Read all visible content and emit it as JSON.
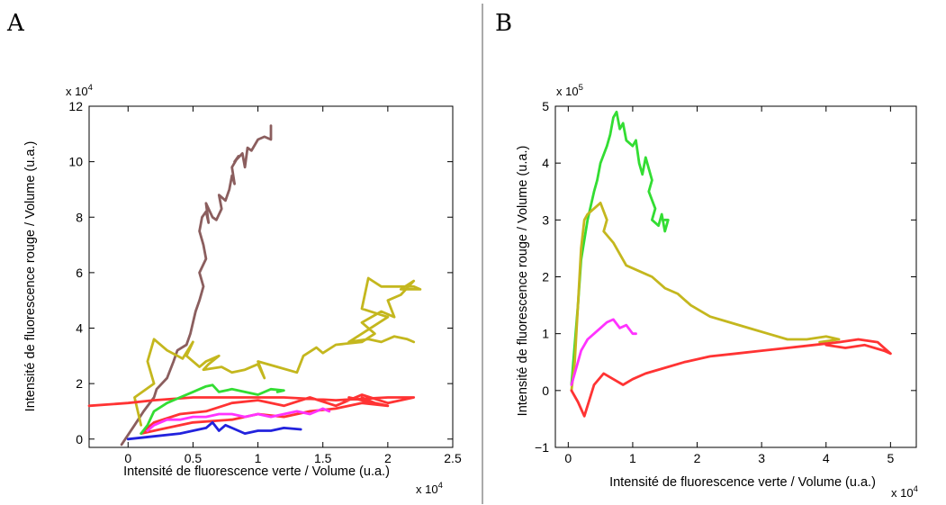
{
  "chart_data": [
    {
      "type": "line",
      "panel": "A",
      "xlabel": "Intensité de fluorescence verte / Volume (u.a.)",
      "ylabel": "Intensité de fluorescence rouge / Volume (u.a.)",
      "x_exponent": "x 10",
      "x_exponent_power": "4",
      "y_exponent": "x 10",
      "y_exponent_power": "4",
      "xlim": [
        -0.3,
        2.5
      ],
      "ylim": [
        -0.3,
        12
      ],
      "xticks": [
        0,
        0.5,
        1,
        1.5,
        2,
        2.5
      ],
      "xtick_labels": [
        "0",
        "0.5",
        "1",
        "1.5",
        "2",
        "2.5"
      ],
      "yticks": [
        0,
        2,
        4,
        6,
        8,
        10,
        12
      ],
      "ytick_labels": [
        "0",
        "2",
        "4",
        "6",
        "8",
        "10",
        "12"
      ],
      "grid": false,
      "series": [
        {
          "color": "#8B5E5E",
          "x": [
            -0.05,
            0.05,
            0.12,
            0.2,
            0.22,
            0.3,
            0.35,
            0.38,
            0.45,
            0.48,
            0.5,
            0.52,
            0.55,
            0.58,
            0.55,
            0.6,
            0.58,
            0.55,
            0.57,
            0.6,
            0.62,
            0.6,
            0.65,
            0.68,
            0.72,
            0.7,
            0.75,
            0.78,
            0.8,
            0.82,
            0.8,
            0.85,
            0.82,
            0.88,
            0.9,
            0.92,
            0.95,
            1.0,
            1.05,
            1.1,
            1.1
          ],
          "y": [
            -0.2,
            0.5,
            1.0,
            1.5,
            1.8,
            2.2,
            2.8,
            3.2,
            3.4,
            3.8,
            4.2,
            4.6,
            5.0,
            5.5,
            6.0,
            6.5,
            7.0,
            7.5,
            8.0,
            8.2,
            7.8,
            8.5,
            8.0,
            7.9,
            8.3,
            8.8,
            8.6,
            9.0,
            9.5,
            9.2,
            9.8,
            10.2,
            10.0,
            10.3,
            9.8,
            10.5,
            10.4,
            10.8,
            10.9,
            10.8,
            11.3
          ]
        },
        {
          "color": "#C4B71E",
          "x": [
            0.1,
            0.05,
            0.2,
            0.15,
            0.2,
            0.3,
            0.42,
            0.5,
            0.45,
            0.55,
            0.6,
            0.7,
            0.62,
            0.58,
            0.72,
            0.8,
            0.9,
            1.0,
            1.05,
            1.0,
            1.15,
            1.3,
            1.35,
            1.45,
            1.5,
            1.6,
            1.8,
            1.9,
            1.8,
            1.95,
            2.05,
            2.0,
            2.1,
            2.2,
            2.1,
            2.25,
            2.2,
            1.95,
            1.85,
            1.8,
            2.0,
            1.7,
            1.85,
            1.95,
            2.05,
            2.15,
            2.2
          ],
          "y": [
            0.5,
            1.5,
            2.0,
            2.8,
            3.6,
            3.2,
            2.9,
            3.5,
            3.0,
            2.6,
            2.8,
            3.0,
            2.7,
            2.5,
            2.6,
            2.4,
            2.5,
            2.7,
            2.2,
            2.8,
            2.6,
            2.4,
            3.0,
            3.3,
            3.1,
            3.4,
            3.5,
            3.8,
            4.2,
            4.6,
            4.4,
            5.0,
            5.2,
            5.7,
            5.4,
            5.4,
            5.5,
            5.5,
            5.8,
            4.7,
            4.4,
            3.5,
            3.6,
            3.5,
            3.7,
            3.6,
            3.5
          ]
        },
        {
          "color": "#FF3333",
          "x": [
            -0.3,
            0.0,
            0.2,
            0.5,
            0.8,
            1.2,
            1.6,
            2.0,
            2.2,
            2.0,
            1.8,
            1.6,
            1.4,
            1.2,
            1.0,
            0.8,
            0.6,
            0.4,
            0.2,
            0.1,
            0.3,
            0.5,
            0.8,
            1.0,
            1.2,
            1.4,
            1.6,
            1.8,
            2.0,
            1.7,
            1.9,
            1.8
          ],
          "y": [
            1.2,
            1.3,
            1.4,
            1.5,
            1.5,
            1.5,
            1.4,
            1.5,
            1.5,
            1.3,
            1.6,
            1.2,
            1.5,
            1.2,
            1.4,
            1.3,
            1.0,
            0.9,
            0.6,
            0.2,
            0.4,
            0.6,
            0.7,
            0.9,
            0.8,
            1.0,
            1.1,
            1.3,
            1.2,
            1.5,
            1.3,
            1.5
          ]
        },
        {
          "color": "#33DD33",
          "x": [
            0.1,
            0.15,
            0.2,
            0.3,
            0.4,
            0.5,
            0.55,
            0.6,
            0.65,
            0.7,
            0.8,
            0.9,
            1.0,
            1.1,
            1.2,
            1.15
          ],
          "y": [
            0.2,
            0.5,
            1.0,
            1.3,
            1.5,
            1.7,
            1.8,
            1.9,
            1.95,
            1.7,
            1.8,
            1.7,
            1.6,
            1.8,
            1.75,
            1.7
          ]
        },
        {
          "color": "#FF33FF",
          "x": [
            0.15,
            0.2,
            0.3,
            0.4,
            0.5,
            0.6,
            0.7,
            0.8,
            0.9,
            1.0,
            1.1,
            1.2,
            1.3,
            1.4,
            1.5,
            1.55,
            1.5
          ],
          "y": [
            0.3,
            0.5,
            0.7,
            0.7,
            0.8,
            0.8,
            0.9,
            0.9,
            0.8,
            0.9,
            0.8,
            0.9,
            1.0,
            0.9,
            1.1,
            1.0,
            1.1
          ]
        },
        {
          "color": "#2222DD",
          "x": [
            0.0,
            0.2,
            0.4,
            0.5,
            0.6,
            0.65,
            0.7,
            0.75,
            0.8,
            0.9,
            1.0,
            1.1,
            1.2,
            1.33
          ],
          "y": [
            0.0,
            0.1,
            0.2,
            0.3,
            0.4,
            0.6,
            0.3,
            0.5,
            0.4,
            0.2,
            0.3,
            0.3,
            0.4,
            0.35
          ]
        }
      ]
    },
    {
      "type": "line",
      "panel": "B",
      "xlabel": "Intensité de fluorescence verte / Volume (u.a.)",
      "ylabel": "Intensité de fluorescence rouge / Volume (u.a.)",
      "x_exponent": "x 10",
      "x_exponent_power": "4",
      "y_exponent": "x 10",
      "y_exponent_power": "5",
      "xlim": [
        -0.2,
        5.4
      ],
      "ylim": [
        -1,
        5
      ],
      "xticks": [
        0,
        1,
        2,
        3,
        4,
        5
      ],
      "xtick_labels": [
        "0",
        "1",
        "2",
        "3",
        "4",
        "5"
      ],
      "yticks": [
        -1,
        0,
        1,
        2,
        3,
        4,
        5
      ],
      "ytick_labels": [
        "−1",
        "0",
        "1",
        "2",
        "3",
        "4",
        "5"
      ],
      "grid": false,
      "series": [
        {
          "color": "#33DD33",
          "x": [
            0.05,
            0.1,
            0.15,
            0.2,
            0.3,
            0.4,
            0.45,
            0.5,
            0.6,
            0.65,
            0.7,
            0.75,
            0.8,
            0.85,
            0.9,
            1.0,
            1.05,
            1.1,
            1.15,
            1.2,
            1.3,
            1.25,
            1.35,
            1.3,
            1.4,
            1.45,
            1.5,
            1.55,
            1.5
          ],
          "y": [
            0.1,
            0.8,
            1.5,
            2.3,
            3.0,
            3.5,
            3.7,
            4.0,
            4.3,
            4.5,
            4.8,
            4.9,
            4.6,
            4.7,
            4.4,
            4.3,
            4.4,
            4.0,
            3.8,
            4.1,
            3.7,
            3.5,
            3.2,
            3.0,
            2.9,
            3.1,
            2.8,
            3.0,
            3.0
          ]
        },
        {
          "color": "#C4B71E",
          "x": [
            0.05,
            0.1,
            0.15,
            0.2,
            0.25,
            0.3,
            0.4,
            0.5,
            0.6,
            0.55,
            0.7,
            0.9,
            1.1,
            1.3,
            1.5,
            1.7,
            1.9,
            2.2,
            2.5,
            2.8,
            3.1,
            3.4,
            3.7,
            4.0,
            4.2,
            3.9
          ],
          "y": [
            0.0,
            0.5,
            1.5,
            2.5,
            3.0,
            3.1,
            3.2,
            3.3,
            3.0,
            2.8,
            2.6,
            2.2,
            2.1,
            2.0,
            1.8,
            1.7,
            1.5,
            1.3,
            1.2,
            1.1,
            1.0,
            0.9,
            0.9,
            0.95,
            0.9,
            0.85
          ]
        },
        {
          "color": "#FF3333",
          "x": [
            0.05,
            0.15,
            0.25,
            0.4,
            0.55,
            0.7,
            0.85,
            1.0,
            1.2,
            1.5,
            1.8,
            2.2,
            2.6,
            3.0,
            3.4,
            3.8,
            4.2,
            4.5,
            4.8,
            5.0,
            4.9,
            4.6,
            4.3,
            4.0
          ],
          "y": [
            0.0,
            -0.2,
            -0.45,
            0.1,
            0.3,
            0.2,
            0.1,
            0.2,
            0.3,
            0.4,
            0.5,
            0.6,
            0.65,
            0.7,
            0.75,
            0.8,
            0.85,
            0.9,
            0.85,
            0.65,
            0.7,
            0.8,
            0.75,
            0.8
          ]
        },
        {
          "color": "#FF33FF",
          "x": [
            0.05,
            0.1,
            0.2,
            0.3,
            0.4,
            0.5,
            0.6,
            0.7,
            0.8,
            0.9,
            1.0,
            1.05
          ],
          "y": [
            0.1,
            0.3,
            0.7,
            0.9,
            1.0,
            1.1,
            1.2,
            1.25,
            1.1,
            1.15,
            1.0,
            1.0
          ]
        }
      ]
    }
  ]
}
